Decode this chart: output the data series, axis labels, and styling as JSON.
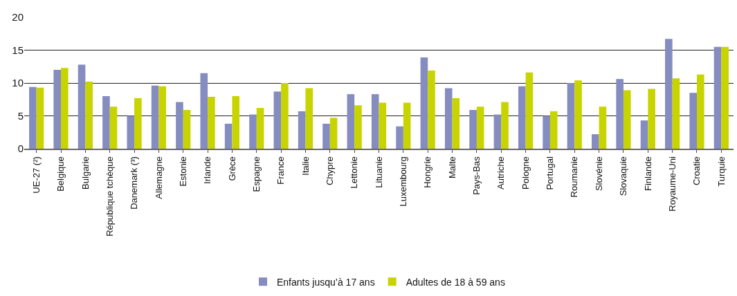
{
  "chart_data": {
    "type": "bar",
    "categories": [
      "UE-27 (²)",
      "Belgique",
      "Bulgarie",
      "République tchèque",
      "Danemark (³)",
      "Allemagne",
      "Estonie",
      "Irlande",
      "Grèce",
      "Espagne",
      "France",
      "Italie",
      "Chypre",
      "Lettonie",
      "Lituanie",
      "Luxembourg",
      "Hongrie",
      "Malte",
      "Pays-Bas",
      "Autriche",
      "Pologne",
      "Portugal",
      "Roumanie",
      "Slovénie",
      "Slovaquie",
      "Finlande",
      "Royaume-Uni",
      "Croatie",
      "Turquie"
    ],
    "series": [
      {
        "name": "Enfants jusqu’à 17 ans",
        "color": "#848cc0",
        "values": [
          9.4,
          12.0,
          12.8,
          8.0,
          5.0,
          9.6,
          7.1,
          11.5,
          3.8,
          5.2,
          8.7,
          5.7,
          3.8,
          8.3,
          8.3,
          3.4,
          13.9,
          9.2,
          5.9,
          5.2,
          9.5,
          5.0,
          10.0,
          2.2,
          10.6,
          4.3,
          16.7,
          8.5,
          15.5
        ]
      },
      {
        "name": "Adultes de 18 à 59 ans",
        "color": "#c8d400",
        "values": [
          9.3,
          12.3,
          10.2,
          6.4,
          7.7,
          9.5,
          5.9,
          7.9,
          8.0,
          6.2,
          10.0,
          9.2,
          4.7,
          6.6,
          7.0,
          7.0,
          11.9,
          7.7,
          6.4,
          7.1,
          11.6,
          5.7,
          10.4,
          6.4,
          8.9,
          9.1,
          10.7,
          11.3,
          15.5
        ]
      }
    ],
    "ylim": [
      0,
      20
    ],
    "yticks": [
      0,
      5,
      10,
      15,
      20
    ],
    "grid": "y",
    "legend": "bottom"
  }
}
